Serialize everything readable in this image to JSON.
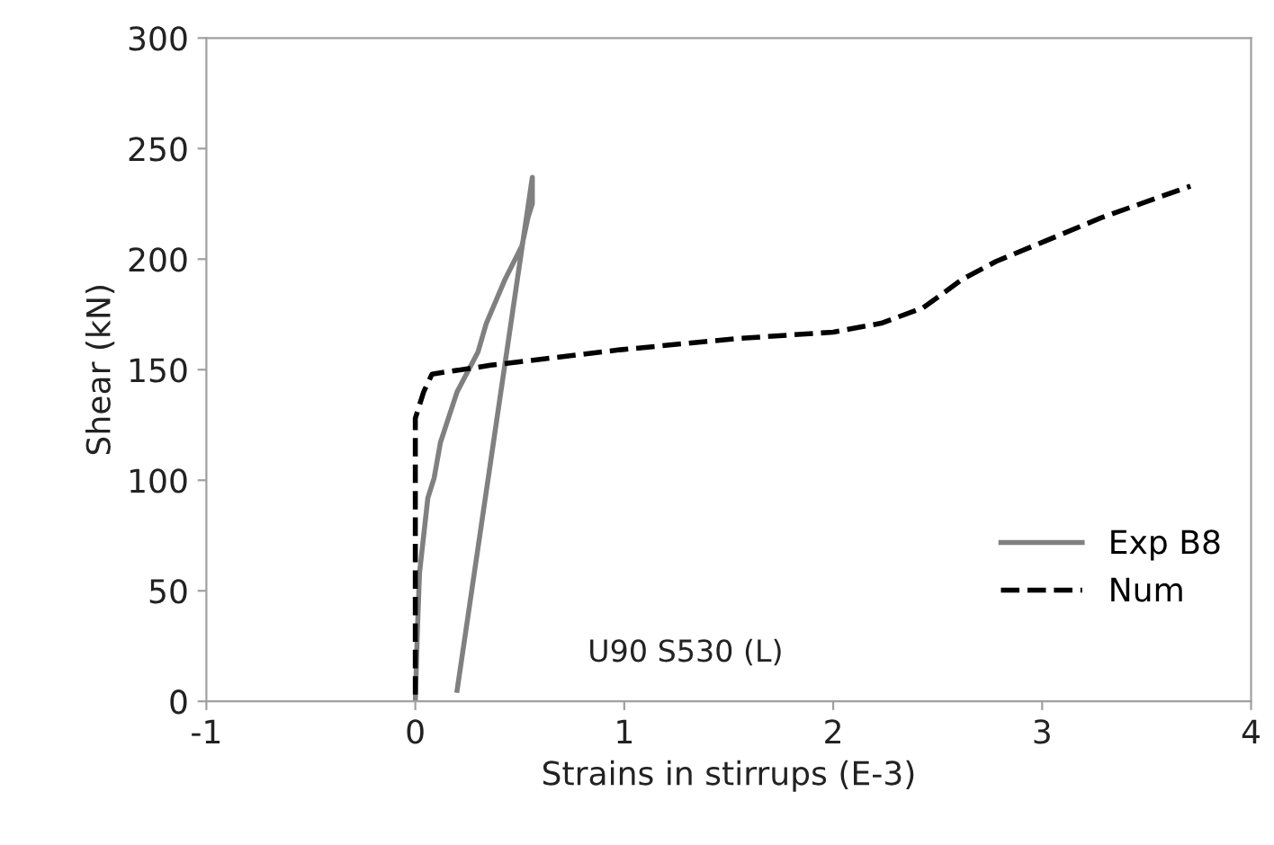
{
  "chart_data": {
    "type": "line",
    "xlabel": "Strains in stirrups (E-3)",
    "ylabel": "Shear (kN)",
    "series": [
      {
        "name": "Exp B8",
        "color": "#808080",
        "line_style": "solid",
        "x": [
          0,
          0.01,
          0.02,
          0.06,
          0.09,
          0.12,
          0.2,
          0.3,
          0.34,
          0.43,
          0.51,
          0.54,
          0.56,
          0.56,
          0.2
        ],
        "values": [
          0,
          32,
          58,
          92,
          101,
          117,
          140,
          158,
          171,
          191,
          206,
          219,
          225,
          237,
          5
        ]
      },
      {
        "name": "Num",
        "color": "#000000",
        "line_style": "dashed",
        "x": [
          0,
          0,
          0,
          0.04,
          0.08,
          0.36,
          0.98,
          1.53,
          2.0,
          2.23,
          2.43,
          2.62,
          2.78,
          3.01,
          3.29,
          3.71
        ],
        "values": [
          3,
          60,
          128,
          140,
          148,
          152,
          159,
          164,
          167,
          171,
          178,
          191,
          199,
          208,
          219,
          233
        ]
      }
    ],
    "annotations": [
      "U90 S530 (L)"
    ],
    "xlim": [
      -1,
      4
    ],
    "xticks": [
      -1,
      0,
      1,
      2,
      3,
      4
    ],
    "ylim": [
      0,
      300
    ],
    "yticks": [
      0,
      50,
      100,
      150,
      200,
      250,
      300
    ],
    "grid": false,
    "legend": "right",
    "marker": "none"
  }
}
